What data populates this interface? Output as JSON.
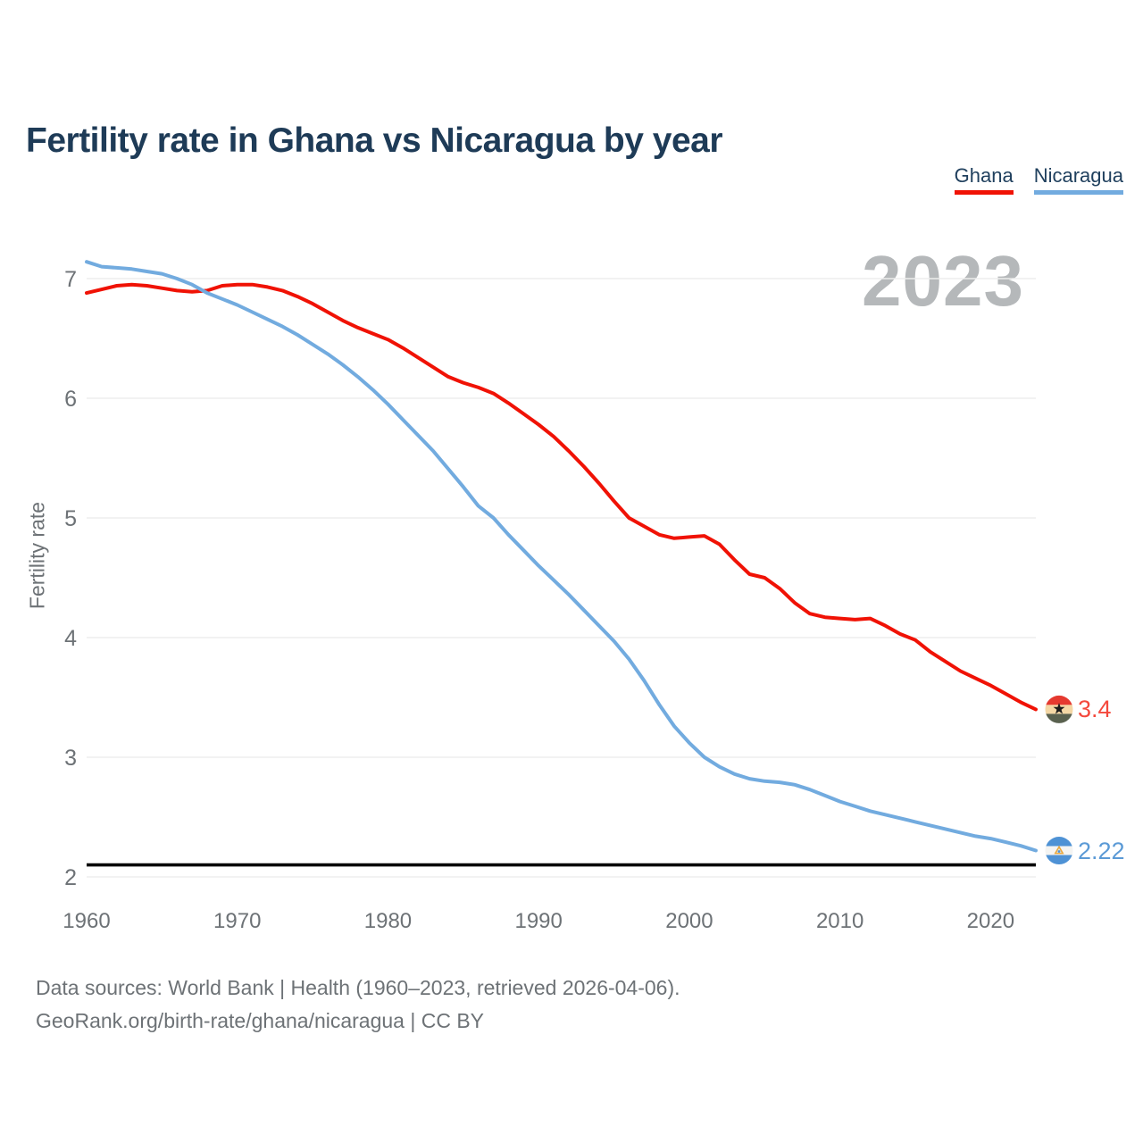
{
  "header": {
    "title": "Fertility rate in Ghana vs Nicaragua by year"
  },
  "chart_data": {
    "type": "line",
    "title": "Fertility rate in Ghana vs Nicaragua by year",
    "watermark": "2023",
    "ylabel": "Fertility rate",
    "xlabel": "",
    "ylim": [
      2,
      7.3
    ],
    "yticks": [
      2,
      3,
      4,
      5,
      6,
      7
    ],
    "xticks": [
      1960,
      1970,
      1980,
      1990,
      2000,
      2010,
      2020
    ],
    "grid": true,
    "legend_position": "top-right",
    "reference_line": {
      "value": 2.1,
      "color": "#000000"
    },
    "x": [
      1960,
      1961,
      1962,
      1963,
      1964,
      1965,
      1966,
      1967,
      1968,
      1969,
      1970,
      1971,
      1972,
      1973,
      1974,
      1975,
      1976,
      1977,
      1978,
      1979,
      1980,
      1981,
      1982,
      1983,
      1984,
      1985,
      1986,
      1987,
      1988,
      1989,
      1990,
      1991,
      1992,
      1993,
      1994,
      1995,
      1996,
      1997,
      1998,
      1999,
      2000,
      2001,
      2002,
      2003,
      2004,
      2005,
      2006,
      2007,
      2008,
      2009,
      2010,
      2011,
      2012,
      2013,
      2014,
      2015,
      2016,
      2017,
      2018,
      2019,
      2020,
      2021,
      2022,
      2023
    ],
    "series": [
      {
        "name": "Ghana",
        "color": "#f01205",
        "label_color": "#f4483c",
        "end_label": "3.4",
        "flag": "ghana",
        "values": [
          6.88,
          6.91,
          6.94,
          6.95,
          6.94,
          6.92,
          6.9,
          6.89,
          6.9,
          6.94,
          6.95,
          6.95,
          6.93,
          6.9,
          6.85,
          6.79,
          6.72,
          6.65,
          6.59,
          6.54,
          6.49,
          6.42,
          6.34,
          6.26,
          6.18,
          6.13,
          6.09,
          6.04,
          5.96,
          5.87,
          5.78,
          5.68,
          5.56,
          5.43,
          5.29,
          5.14,
          5.0,
          4.93,
          4.86,
          4.83,
          4.84,
          4.85,
          4.78,
          4.65,
          4.53,
          4.5,
          4.41,
          4.29,
          4.2,
          4.17,
          4.16,
          4.15,
          4.16,
          4.1,
          4.03,
          3.98,
          3.88,
          3.8,
          3.72,
          3.66,
          3.6,
          3.53,
          3.46,
          3.4
        ]
      },
      {
        "name": "Nicaragua",
        "color": "#72abdf",
        "label_color": "#5b9ad6",
        "end_label": "2.22",
        "flag": "nicaragua",
        "values": [
          7.14,
          7.1,
          7.09,
          7.08,
          7.06,
          7.04,
          7.0,
          6.95,
          6.88,
          6.83,
          6.78,
          6.72,
          6.66,
          6.6,
          6.53,
          6.45,
          6.37,
          6.28,
          6.18,
          6.07,
          5.95,
          5.82,
          5.69,
          5.56,
          5.41,
          5.26,
          5.1,
          5.0,
          4.86,
          4.73,
          4.6,
          4.48,
          4.36,
          4.23,
          4.1,
          3.97,
          3.82,
          3.64,
          3.44,
          3.26,
          3.12,
          3.0,
          2.92,
          2.86,
          2.82,
          2.8,
          2.79,
          2.77,
          2.73,
          2.68,
          2.63,
          2.59,
          2.55,
          2.52,
          2.49,
          2.46,
          2.43,
          2.4,
          2.37,
          2.34,
          2.32,
          2.29,
          2.26,
          2.22
        ]
      }
    ]
  },
  "footer": {
    "line1": "Data sources: World Bank | Health (1960–2023, retrieved 2026-04-06).",
    "line2": "GeoRank.org/birth-rate/ghana/nicaragua | CC BY"
  }
}
